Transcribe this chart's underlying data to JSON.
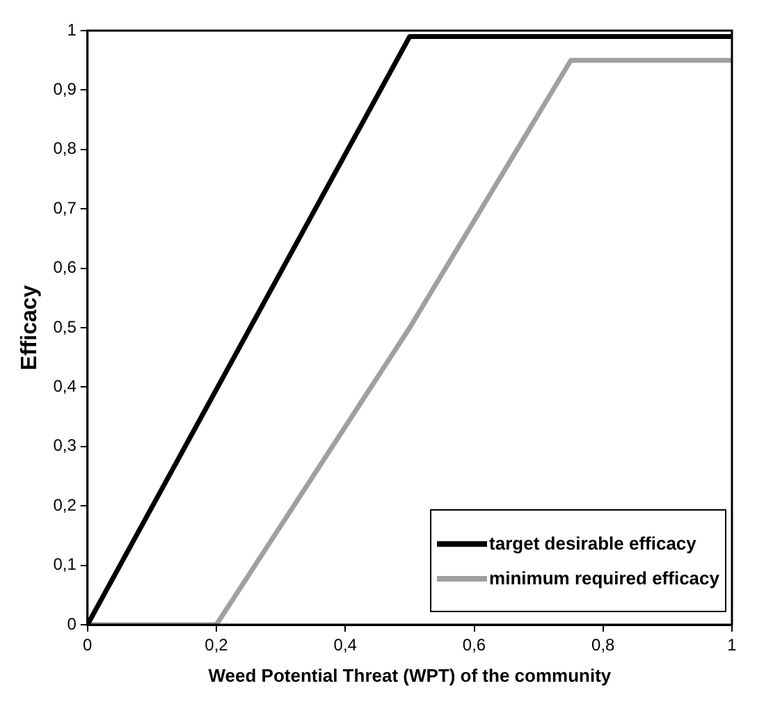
{
  "chart_data": {
    "type": "line",
    "xlabel": "Weed Potential Threat (WPT) of the community",
    "ylabel": "Efficacy",
    "xlim": [
      0,
      1
    ],
    "ylim": [
      0,
      1
    ],
    "xticks": [
      0,
      {
        "value": 0.2,
        "label": "0,2"
      },
      {
        "value": 0.4,
        "label": "0,4"
      },
      {
        "value": 0.6,
        "label": "0,6"
      },
      {
        "value": 0.8,
        "label": "0,8"
      },
      1
    ],
    "yticks": [
      0,
      {
        "value": 0.1,
        "label": "0,1"
      },
      {
        "value": 0.2,
        "label": "0,2"
      },
      {
        "value": 0.3,
        "label": "0,3"
      },
      {
        "value": 0.4,
        "label": "0,4"
      },
      {
        "value": 0.5,
        "label": "0,5"
      },
      {
        "value": 0.6,
        "label": "0,6"
      },
      {
        "value": 0.7,
        "label": "0,7"
      },
      {
        "value": 0.8,
        "label": "0,8"
      },
      {
        "value": 0.9,
        "label": "0,9"
      },
      1
    ],
    "series": [
      {
        "name": "target desirable efficacy",
        "color": "#000000",
        "x": [
          0,
          0.5,
          1
        ],
        "values": [
          0,
          0.99,
          0.99
        ]
      },
      {
        "name": "minimum required efficacy",
        "color": "#a0a0a0",
        "x": [
          0,
          0.2,
          0.5,
          0.75,
          1
        ],
        "values": [
          0,
          0,
          0.5,
          0.95,
          0.95
        ]
      }
    ],
    "grid": false,
    "legend": "bottom right",
    "marker": "none",
    "line_style": "solid"
  }
}
